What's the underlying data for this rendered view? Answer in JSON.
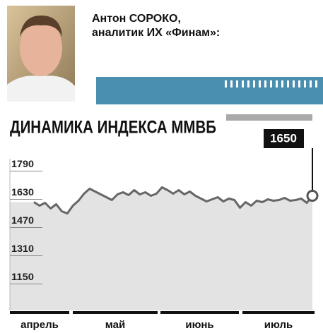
{
  "header": {
    "name": "Антон СОРОКО,",
    "role": "аналитик ИХ «Финам»:"
  },
  "chart_data": {
    "type": "line",
    "title": "ДИНАМИКА ИНДЕКСА ММВБ",
    "months": [
      "апрель",
      "май",
      "июнь",
      "июль"
    ],
    "series": [
      {
        "color": "#666666",
        "values": [
          1614,
          1594,
          1610,
          1578,
          1602,
          1562,
          1550,
          1594,
          1622,
          1662,
          1690,
          1674,
          1658,
          1642,
          1626,
          1658,
          1670,
          1654,
          1682,
          1658,
          1670,
          1650,
          1662,
          1698,
          1682,
          1662,
          1682,
          1658,
          1674,
          1650,
          1634,
          1618,
          1630,
          1642,
          1618,
          1634,
          1626,
          1582,
          1614,
          1594,
          1622,
          1614,
          1630,
          1622,
          1626,
          1638,
          1622,
          1626,
          1634,
          1610,
          1650
        ]
      }
    ],
    "ylim": [
      1000,
      1860
    ],
    "yticks": [
      1790,
      1630,
      1470,
      1310,
      1150
    ],
    "grid": true
  }
}
